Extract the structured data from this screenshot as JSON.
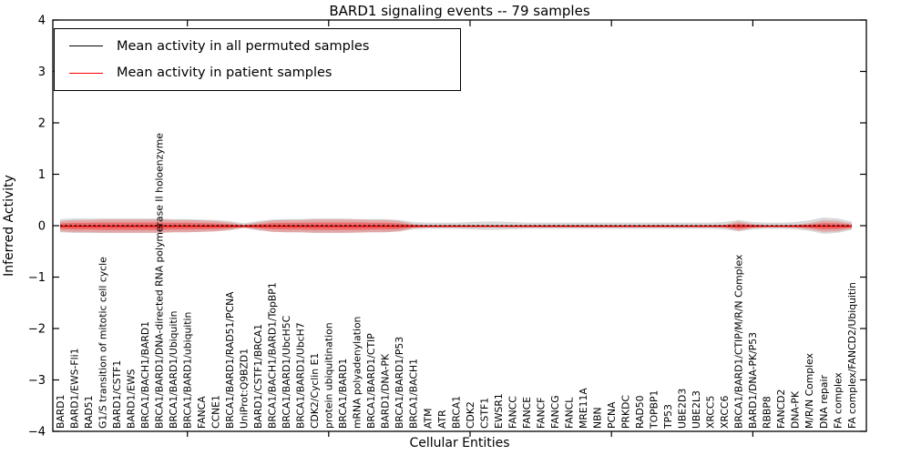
{
  "figure": {
    "title": "BARD1 signaling events -- 79 samples",
    "xlabel": "Cellular Entities",
    "ylabel": "Inferred Activity"
  },
  "chart_data": {
    "type": "line",
    "title": "BARD1 signaling events -- 79 samples",
    "xlabel": "Cellular Entities",
    "ylabel": "Inferred Activity",
    "ylim": [
      -4,
      4
    ],
    "yticks": [
      4,
      3,
      2,
      1,
      0,
      -1,
      -2,
      -3,
      -4
    ],
    "x_major_tick_positions": [
      10,
      20,
      30,
      40,
      50
    ],
    "grid": false,
    "legend_position": "upper left",
    "categories": [
      "BARD1",
      "BARD1/EWS-Fli1",
      "RAD51",
      "G1/S transition of mitotic cell cycle",
      "BARD1/CSTF1",
      "BARD1/EWS",
      "BRCA1/BACH1/BARD1",
      "BRCA1/BARD1/DNA-directed RNA polymerase II holoenzyme",
      "BRCA1/BARD1/Ubiquitin",
      "BRCA1/BARD1/ubiquitin",
      "FANCA",
      "CCNE1",
      "BRCA1/BARD1/RAD51/PCNA",
      "UniProt:Q9BZD1",
      "BARD1/CSTF1/BRCA1",
      "BRCA1/BACH1/BARD1/TopBP1",
      "BRCA1/BARD1/UbcH5C",
      "BRCA1/BARD1/UbcH7",
      "CDK2/Cyclin E1",
      "protein ubiquitination",
      "BRCA1/BARD1",
      "mRNA polyadenylation",
      "BRCA1/BARD1/CTIP",
      "BARD1/DNA-PK",
      "BRCA1/BARD1/P53",
      "BRCA1/BACH1",
      "ATM",
      "ATR",
      "BRCA1",
      "CDK2",
      "CSTF1",
      "EWSR1",
      "FANCC",
      "FANCE",
      "FANCF",
      "FANCG",
      "FANCL",
      "MRE11A",
      "NBN",
      "PCNA",
      "PRKDC",
      "RAD50",
      "TOPBP1",
      "TP53",
      "UBE2D3",
      "UBE2L3",
      "XRCC5",
      "XRCC6",
      "BRCA1/BARD1/CTIP/M/R/N Complex",
      "BARD1/DNA-PK/P53",
      "RBBP8",
      "FANCD2",
      "DNA-PK",
      "M/R/N Complex",
      "DNA repair",
      "FA complex",
      "FA complex/FANCD2/Ubiquitin"
    ],
    "series": [
      {
        "name": "Mean activity in all permuted samples",
        "color": "#000000",
        "line_style": "dashed",
        "values": [
          0,
          0,
          0,
          0,
          0,
          0,
          0,
          0,
          0,
          0,
          0,
          0,
          0,
          0,
          0,
          0,
          0,
          0,
          0,
          0,
          0,
          0,
          0,
          0,
          0,
          0,
          0,
          0,
          0,
          0,
          0,
          0,
          0,
          0,
          0,
          0,
          0,
          0,
          0,
          0,
          0,
          0,
          0,
          0,
          0,
          0,
          0,
          0,
          0,
          0,
          0,
          0,
          0,
          0,
          0,
          0,
          0
        ]
      },
      {
        "name": "Mean activity in patient samples",
        "color": "#ff0000",
        "line_style": "solid",
        "values": [
          -0.01,
          -0.01,
          -0.01,
          -0.01,
          -0.01,
          -0.01,
          -0.01,
          -0.01,
          -0.01,
          -0.01,
          -0.01,
          -0.01,
          -0.01,
          -0.01,
          -0.01,
          -0.01,
          -0.01,
          -0.01,
          -0.01,
          -0.01,
          -0.01,
          -0.01,
          -0.01,
          -0.01,
          -0.01,
          -0.01,
          -0.01,
          -0.01,
          -0.01,
          -0.01,
          -0.01,
          -0.01,
          -0.01,
          -0.01,
          -0.01,
          -0.01,
          -0.01,
          -0.01,
          -0.01,
          -0.01,
          -0.01,
          -0.01,
          -0.01,
          -0.01,
          -0.01,
          -0.01,
          -0.01,
          -0.01,
          -0.01,
          -0.01,
          -0.01,
          -0.01,
          -0.01,
          -0.01,
          -0.01,
          -0.01,
          -0.01
        ]
      }
    ],
    "bands": [
      {
        "name": "permuted-samples-spread",
        "color": "#999999",
        "opacity": 0.38,
        "center_series": 0,
        "half_widths": [
          0.13,
          0.14,
          0.14,
          0.14,
          0.14,
          0.14,
          0.14,
          0.14,
          0.13,
          0.13,
          0.12,
          0.11,
          0.09,
          0.05,
          0.09,
          0.12,
          0.13,
          0.13,
          0.14,
          0.14,
          0.14,
          0.13,
          0.13,
          0.13,
          0.11,
          0.07,
          0.06,
          0.06,
          0.06,
          0.07,
          0.08,
          0.08,
          0.07,
          0.06,
          0.06,
          0.06,
          0.06,
          0.06,
          0.06,
          0.06,
          0.06,
          0.06,
          0.06,
          0.06,
          0.06,
          0.06,
          0.06,
          0.07,
          0.11,
          0.07,
          0.06,
          0.06,
          0.07,
          0.1,
          0.16,
          0.14,
          0.08
        ]
      },
      {
        "name": "patient-samples-spread",
        "color": "#ff0000",
        "opacity": 0.22,
        "inner_scale": 0.55,
        "inner_opacity": 0.35,
        "center_series": 1,
        "half_widths": [
          0.1,
          0.12,
          0.12,
          0.13,
          0.13,
          0.13,
          0.13,
          0.13,
          0.12,
          0.12,
          0.11,
          0.1,
          0.07,
          0.03,
          0.07,
          0.11,
          0.12,
          0.12,
          0.13,
          0.13,
          0.13,
          0.13,
          0.12,
          0.12,
          0.1,
          0.04,
          0.02,
          0.02,
          0.02,
          0.02,
          0.02,
          0.02,
          0.02,
          0.02,
          0.02,
          0.02,
          0.02,
          0.02,
          0.02,
          0.02,
          0.02,
          0.02,
          0.02,
          0.02,
          0.02,
          0.02,
          0.02,
          0.03,
          0.09,
          0.04,
          0.02,
          0.02,
          0.03,
          0.06,
          0.11,
          0.1,
          0.05
        ]
      }
    ]
  }
}
